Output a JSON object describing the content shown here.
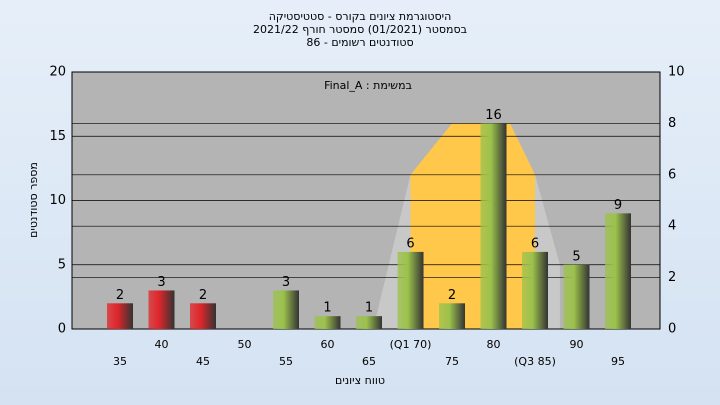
{
  "chart_data": {
    "type": "bar",
    "title": "היסטוגרמת ציונים בקורס - סטטיסטיקה",
    "subtitle": "בסמסטר  (01/2021)  סמסטר חורף 2021/22",
    "subtitle2": "סטודנטים רשומים - 86",
    "annotation": "Final_A : במשימת",
    "x_label": "טווח ציונים",
    "y_label": "מספר סטודנטים",
    "categories": [
      "35",
      "40",
      "45",
      "50",
      "55",
      "60",
      "65",
      "(Q1 70)",
      "75",
      "80",
      "(Q3 85)",
      "90",
      "95"
    ],
    "values": [
      2,
      3,
      2,
      null,
      3,
      1,
      1,
      6,
      2,
      16,
      6,
      5,
      9
    ],
    "colors": [
      "#e0262b",
      "#e0262b",
      "#e0262b",
      null,
      "#9cc24c",
      "#9cc24c",
      "#9cc24c",
      "#9cc24c",
      "#9cc24c",
      "#9cc24c",
      "#9cc24c",
      "#9cc24c",
      "#9cc24c"
    ],
    "ylim": [
      0,
      20
    ],
    "yticks": [
      0,
      5,
      10,
      15,
      20
    ],
    "y2lim": [
      0,
      10
    ],
    "y2ticks": [
      0,
      2,
      4,
      6,
      8,
      10
    ],
    "areas": [
      {
        "color": "#c8c8c8",
        "x": [
          65.5,
          70
        ],
        "values": [
          0,
          6
        ],
        "axis": "y2"
      },
      {
        "color": "#ffc84a",
        "x": [
          70,
          75,
          82,
          85
        ],
        "values": [
          6,
          8,
          8,
          6
        ],
        "axis": "y2"
      },
      {
        "color": "#c8c8c8",
        "x": [
          85,
          88
        ],
        "values": [
          6,
          2.5
        ],
        "axis": "y2"
      }
    ],
    "grid": true
  }
}
